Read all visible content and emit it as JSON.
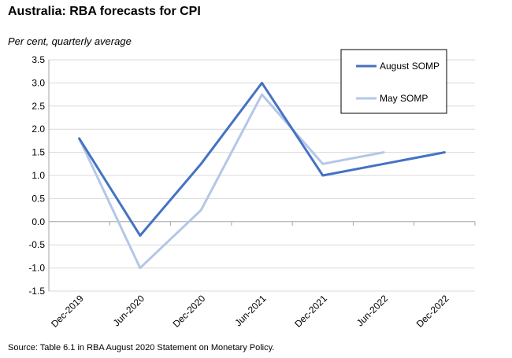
{
  "title": "Australia: RBA forecasts for CPI",
  "subtitle": "Per cent, quarterly average",
  "source": "Source: Table 6.1 in RBA August 2020 Statement on Monetary Policy.",
  "chart_data": {
    "type": "line",
    "categories": [
      "Dec-2019",
      "Jun-2020",
      "Dec-2020",
      "Jun-2021",
      "Dec-2021",
      "Jun-2022",
      "Dec-2022"
    ],
    "series": [
      {
        "name": "August SOMP",
        "color": "#4472c4",
        "values": [
          1.8,
          -0.3,
          1.25,
          3.0,
          1.0,
          1.25,
          1.5
        ]
      },
      {
        "name": "May SOMP",
        "color": "#b4c7e7",
        "values": [
          1.8,
          -1.0,
          0.25,
          2.75,
          1.25,
          1.5,
          null
        ]
      }
    ],
    "ylim": [
      -1.5,
      3.5
    ],
    "yticks": [
      "3.5",
      "3.0",
      "2.5",
      "2.0",
      "1.5",
      "1.0",
      "0.5",
      "0.0",
      "-0.5",
      "-1.0",
      "-1.5"
    ],
    "grid": true,
    "legend_position": "top-right",
    "xlabel": "",
    "ylabel": ""
  }
}
